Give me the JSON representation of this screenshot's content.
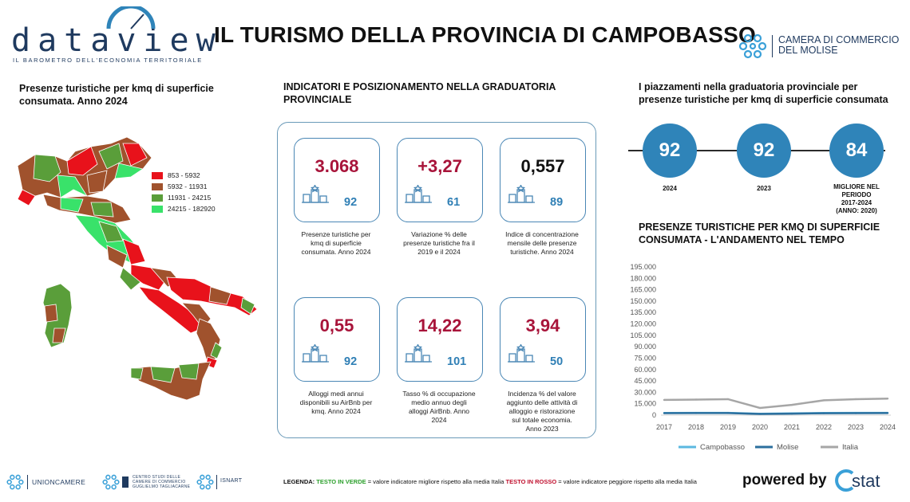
{
  "header": {
    "logo_text": "dataview",
    "logo_tagline": "IL BAROMETRO DELL'ECONOMIA TERRITORIALE",
    "title": "IL TURISMO DELLA PROVINCIA DI CAMPOBASSO",
    "chamber_line1": "CAMERA DI COMMERCIO",
    "chamber_line2": "DEL MOLISE"
  },
  "map_section": {
    "title_line1": "Presenze turistiche per kmq di superficie",
    "title_line2": "consumata. Anno 2024",
    "legend": [
      {
        "label": "853 - 5932",
        "color": "#e8121b"
      },
      {
        "label": "5932 - 11931",
        "color": "#a0522d"
      },
      {
        "label": "11931 - 24215",
        "color": "#5a9e3a"
      },
      {
        "label": "24215 - 182920",
        "color": "#39e26a"
      }
    ]
  },
  "indicators": {
    "title_line1": "INDICATORI E POSIZIONAMENTO NELLA GRADUATORIA",
    "title_line2": "PROVINCIALE",
    "cards": [
      {
        "value": "3.068",
        "rank": "92",
        "color": "#a8143a",
        "desc": [
          "Presenze turistiche per",
          "kmq di superficie",
          "consumata. Anno 2024"
        ]
      },
      {
        "value": "+3,27",
        "rank": "61",
        "color": "#a8143a",
        "desc": [
          "Variazione % delle",
          "presenze turistiche fra il",
          "2019 e il 2024"
        ]
      },
      {
        "value": "0,557",
        "rank": "89",
        "color": "#111111",
        "desc": [
          "Indice di concentrazione",
          "mensile delle presenze",
          "turistiche. Anno 2024"
        ]
      },
      {
        "value": "0,55",
        "rank": "92",
        "color": "#a8143a",
        "desc": [
          "Alloggi medi annui",
          "disponibili su AirBnb per",
          "kmq. Anno 2024"
        ]
      },
      {
        "value": "14,22",
        "rank": "101",
        "color": "#a8143a",
        "desc": [
          "Tasso % di occupazione",
          "medio annuo degli",
          "alloggi AirBnb. Anno",
          "2024"
        ]
      },
      {
        "value": "3,94",
        "rank": "50",
        "color": "#a8143a",
        "desc": [
          "Incidenza % del valore",
          "aggiunto delle attività di",
          "alloggio e ristorazione",
          "sul totale economia.",
          "Anno 2023"
        ]
      }
    ]
  },
  "ranking": {
    "title_line1": "I piazzamenti nella graduatoria provinciale per",
    "title_line2": "presenze turistiche per kmq di superficie consumata",
    "items": [
      {
        "value": "92",
        "label": [
          "2024"
        ]
      },
      {
        "value": "92",
        "label": [
          "2023"
        ]
      },
      {
        "value": "84",
        "label": [
          "MIGLIORE NEL",
          "PERIODO",
          "2017-2024",
          "(ANNO: 2020)"
        ]
      }
    ]
  },
  "trend": {
    "title_line1": "PRESENZE TURISTICHE PER KMQ DI SUPERFICIE",
    "title_line2": "CONSUMATA - L'ANDAMENTO NEL TEMPO"
  },
  "chart_data": {
    "type": "line",
    "x": [
      "2017",
      "2018",
      "2019",
      "2020",
      "2021",
      "2022",
      "2023",
      "2024"
    ],
    "ylim": [
      0,
      195000
    ],
    "yticks": [
      "0",
      "15.000",
      "30.000",
      "45.000",
      "60.000",
      "75.000",
      "90.000",
      "105.000",
      "120.000",
      "135.000",
      "150.000",
      "165.000",
      "180.000",
      "195.000"
    ],
    "ytick_values": [
      0,
      15000,
      30000,
      45000,
      60000,
      75000,
      90000,
      105000,
      120000,
      135000,
      150000,
      165000,
      180000,
      195000
    ],
    "series": [
      {
        "name": "Campobasso",
        "color": "#5bb8e0",
        "values": [
          2900,
          3000,
          3000,
          1800,
          2300,
          2900,
          3000,
          3068
        ]
      },
      {
        "name": "Molise",
        "color": "#2b6f9e",
        "values": [
          2600,
          2700,
          2700,
          1600,
          2000,
          2500,
          2600,
          2700
        ]
      },
      {
        "name": "Italia",
        "color": "#a6a6a6",
        "values": [
          20000,
          20500,
          21000,
          9500,
          13500,
          19500,
          21000,
          21800
        ]
      }
    ],
    "grid": false,
    "legend": "bottom"
  },
  "footer": {
    "org1": "UNIONCAMERE",
    "org2_line1": "CENTRO STUDI DELLE",
    "org2_line2": "CAMERE DI COMMERCIO",
    "org2_line3": "GUGLIELMO TAGLIACARNE",
    "org3": "ISNART",
    "legenda_label": "LEGENDA:",
    "legenda_green": "TESTO IN VERDE",
    "legenda_mid": "= valore indicatore migliore rispetto alla media Italia",
    "legenda_red": "TESTO IN ROSSO",
    "legenda_end": "= valore indicatore peggiore rispetto alla media Italia",
    "powered": "powered by",
    "stat_brand": "stat"
  }
}
